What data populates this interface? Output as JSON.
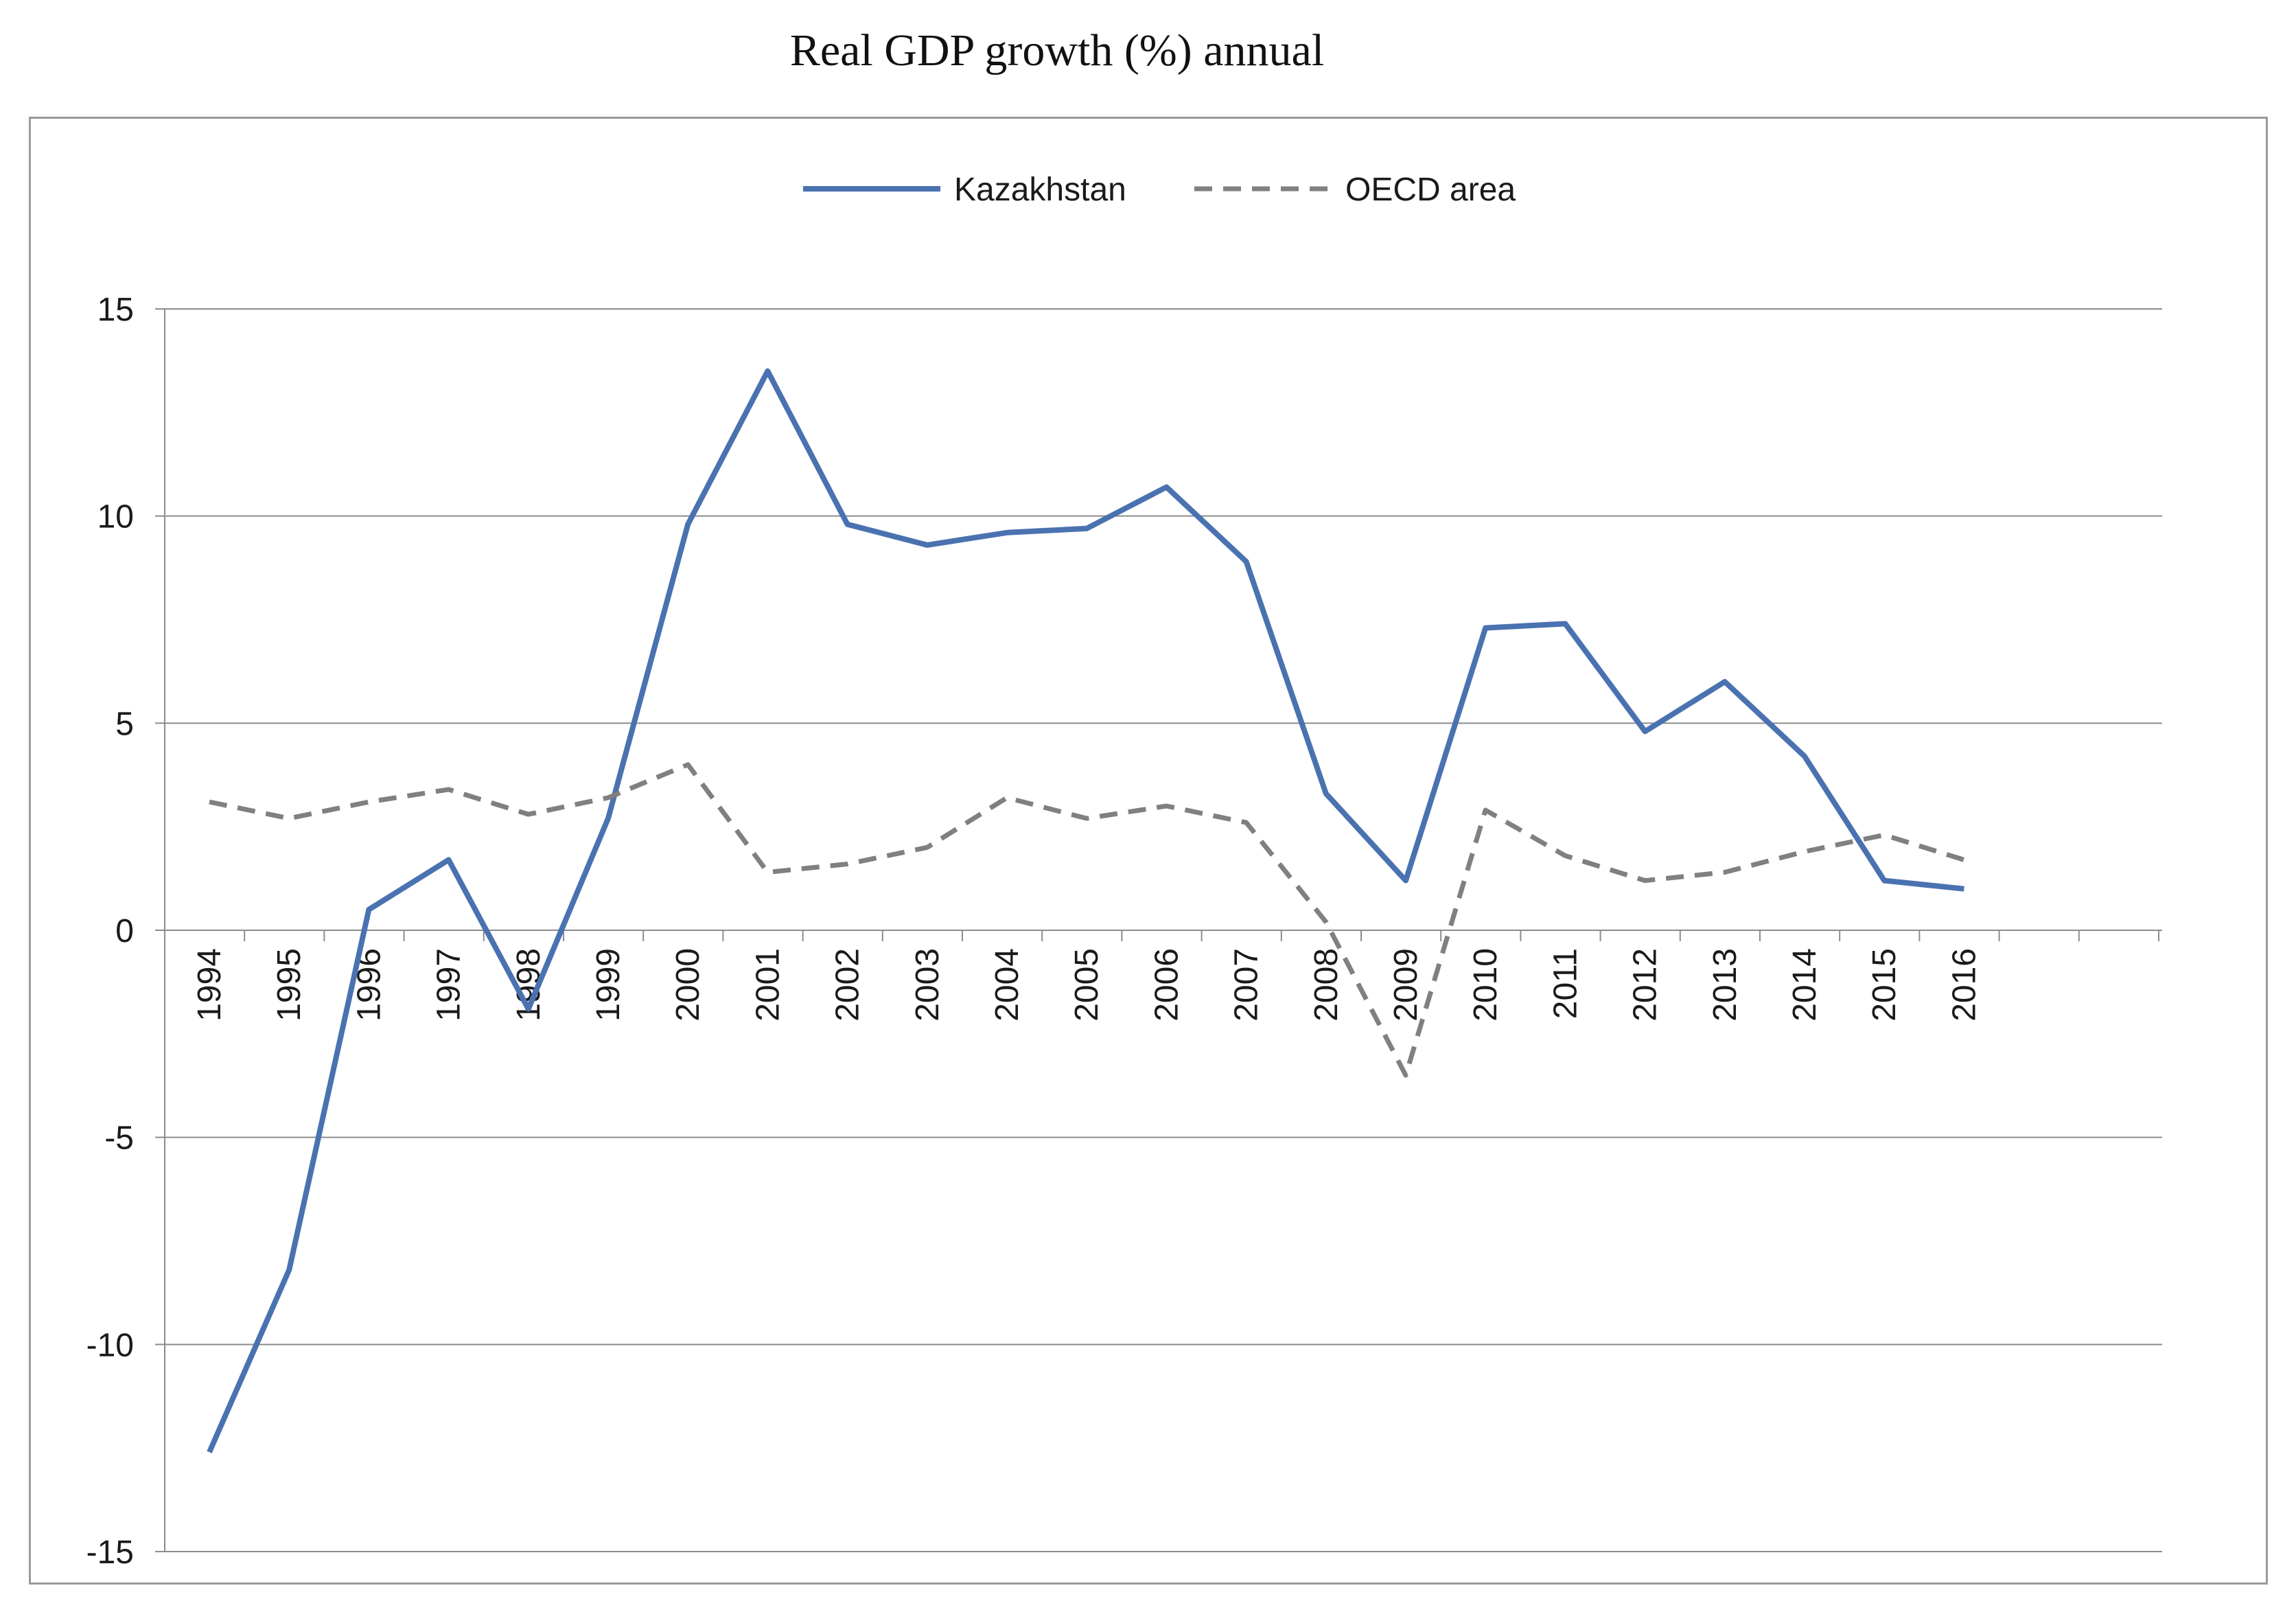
{
  "chart_data": {
    "type": "line",
    "title": "Real GDP growth (%) annual",
    "xlabel": "",
    "ylabel": "",
    "ylim": [
      -15,
      15
    ],
    "y_ticks": [
      "15",
      "10",
      "5",
      "0",
      "-5",
      "-10",
      "-15"
    ],
    "y_tick_values": [
      15,
      10,
      5,
      0,
      -5,
      -10,
      -15
    ],
    "categories": [
      "1994",
      "1995",
      "1996",
      "1997",
      "1998",
      "1999",
      "2000",
      "2001",
      "2002",
      "2003",
      "2004",
      "2005",
      "2006",
      "2007",
      "2008",
      "2009",
      "2010",
      "2011",
      "2012",
      "2013",
      "2014",
      "2015",
      "2016"
    ],
    "grid": true,
    "legend_position": "top-center",
    "series": [
      {
        "name": "Kazakhstan",
        "color": "#4a72b0",
        "style": "solid",
        "values": [
          -12.6,
          -8.2,
          0.5,
          1.7,
          -1.9,
          2.7,
          9.8,
          13.5,
          9.8,
          9.3,
          9.6,
          9.7,
          10.7,
          8.9,
          3.3,
          1.2,
          7.3,
          7.4,
          4.8,
          6.0,
          4.2,
          1.2,
          1.0
        ]
      },
      {
        "name": "OECD area",
        "color": "#808080",
        "style": "dashed",
        "values": [
          3.1,
          2.7,
          3.1,
          3.4,
          2.8,
          3.2,
          4.0,
          1.4,
          1.6,
          2.0,
          3.2,
          2.7,
          3.0,
          2.6,
          0.2,
          -3.5,
          2.9,
          1.8,
          1.2,
          1.4,
          1.9,
          2.3,
          1.7
        ]
      }
    ]
  }
}
